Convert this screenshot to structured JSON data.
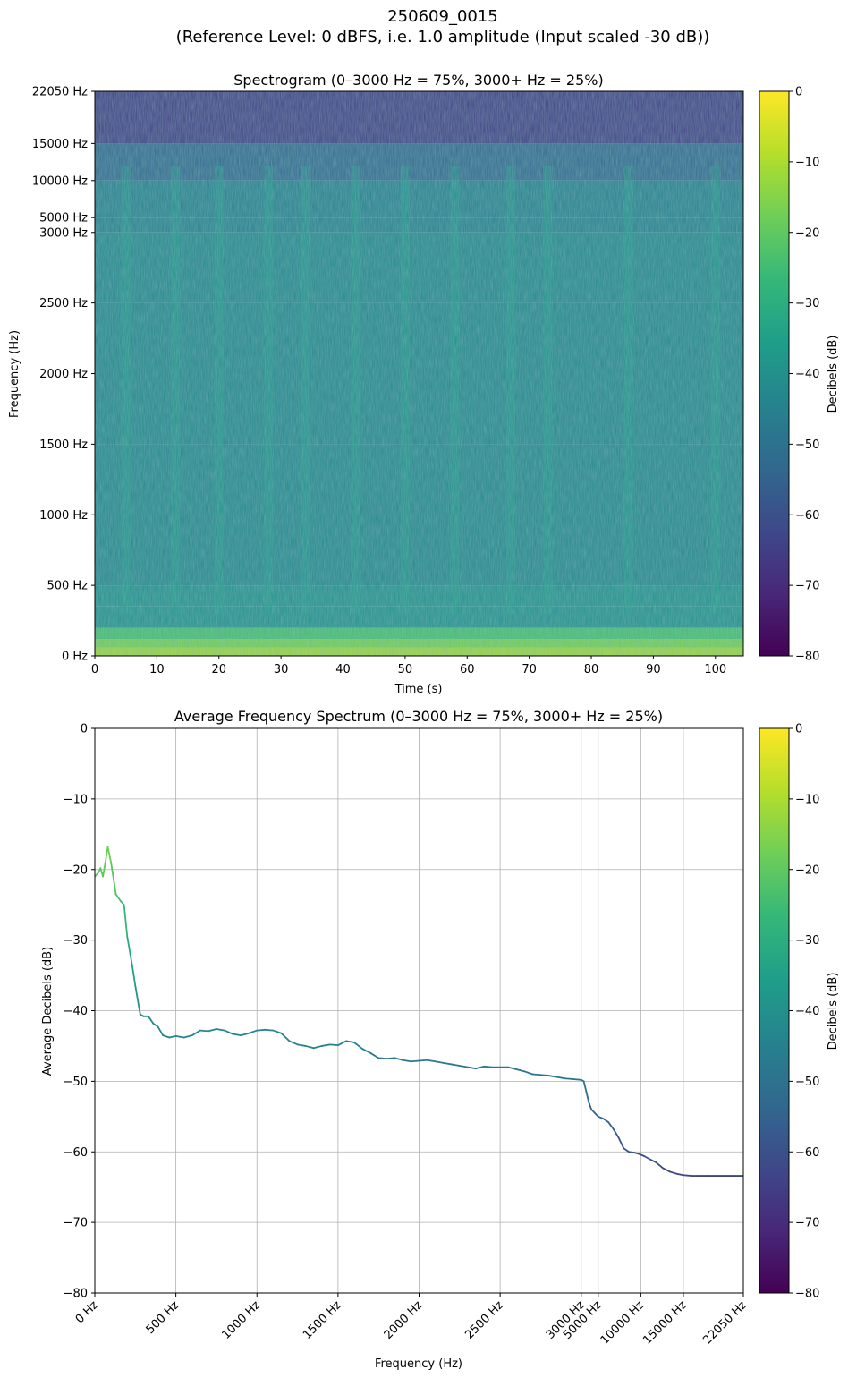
{
  "figure": {
    "title_line1": "250609_0015",
    "title_line2": "(Reference Level: 0 dBFS, i.e. 1.0 amplitude (Input scaled -30 dB))"
  },
  "colormap": {
    "name": "viridis",
    "stops": [
      "#440154",
      "#482878",
      "#3e4989",
      "#31688e",
      "#26828e",
      "#1f9e89",
      "#35b779",
      "#6ece58",
      "#b5de2b",
      "#fde725"
    ]
  },
  "chart_data": [
    {
      "type": "heatmap",
      "title": "Spectrogram (0–3000 Hz = 75%, 3000+ Hz = 25%)",
      "xlabel": "Time (s)",
      "ylabel": "Frequency (Hz)",
      "xlim": [
        0,
        104.5
      ],
      "x_ticks": [
        0,
        10,
        20,
        30,
        40,
        50,
        60,
        70,
        80,
        90,
        100
      ],
      "y_scale": "piecewise: 0–3000 Hz linear on lower 75%, 3000–22050 Hz linear on upper 25%",
      "y_ticks": [
        {
          "hz": 0,
          "label": "0 Hz"
        },
        {
          "hz": 500,
          "label": "500 Hz"
        },
        {
          "hz": 1000,
          "label": "1000 Hz"
        },
        {
          "hz": 1500,
          "label": "1500 Hz"
        },
        {
          "hz": 2000,
          "label": "2000 Hz"
        },
        {
          "hz": 2500,
          "label": "2500 Hz"
        },
        {
          "hz": 3000,
          "label": "3000 Hz"
        },
        {
          "hz": 5000,
          "label": "5000 Hz"
        },
        {
          "hz": 10000,
          "label": "10000 Hz"
        },
        {
          "hz": 15000,
          "label": "15000 Hz"
        },
        {
          "hz": 22050,
          "label": "22050 Hz"
        }
      ],
      "colorbar": {
        "label": "Decibels (dB)",
        "range": [
          -80,
          0
        ],
        "ticks": [
          0,
          -10,
          -20,
          -30,
          -40,
          -50,
          -60,
          -70,
          -80
        ]
      },
      "approx_levels_db": {
        "above_15000_hz": -65,
        "3000_to_10000_hz": -45,
        "500_to_3000_hz": -43,
        "below_200_hz": -18
      },
      "bright_columns_s": [
        5,
        13,
        20,
        28,
        34,
        42,
        50,
        58,
        67,
        73,
        86,
        100
      ]
    },
    {
      "type": "line",
      "title": "Average Frequency Spectrum (0–3000 Hz = 75%, 3000+ Hz = 25%)",
      "xlabel": "Frequency (Hz)",
      "ylabel": "Average Decibels (dB)",
      "ylim": [
        -80,
        0
      ],
      "y_ticks": [
        0,
        -10,
        -20,
        -30,
        -40,
        -50,
        -60,
        -70,
        -80
      ],
      "x_scale": "piecewise: 0–3000 Hz linear on left 75%, 3000–22050 Hz linear on right 25%",
      "x_ticks": [
        {
          "hz": 0,
          "label": "0 Hz"
        },
        {
          "hz": 500,
          "label": "500 Hz"
        },
        {
          "hz": 1000,
          "label": "1000 Hz"
        },
        {
          "hz": 1500,
          "label": "1500 Hz"
        },
        {
          "hz": 2000,
          "label": "2000 Hz"
        },
        {
          "hz": 2500,
          "label": "2500 Hz"
        },
        {
          "hz": 3000,
          "label": "3000 Hz"
        },
        {
          "hz": 5000,
          "label": "5000 Hz"
        },
        {
          "hz": 10000,
          "label": "10000 Hz"
        },
        {
          "hz": 15000,
          "label": "15000 Hz"
        },
        {
          "hz": 22050,
          "label": "22050 Hz"
        }
      ],
      "grid": true,
      "colorbar": {
        "label": "Decibels (dB)",
        "range": [
          -80,
          0
        ],
        "ticks": [
          0,
          -10,
          -20,
          -30,
          -40,
          -50,
          -60,
          -70,
          -80
        ]
      },
      "x": [
        0,
        20,
        35,
        50,
        65,
        80,
        100,
        130,
        160,
        180,
        200,
        230,
        250,
        280,
        300,
        330,
        360,
        390,
        420,
        460,
        500,
        550,
        600,
        650,
        700,
        750,
        800,
        850,
        900,
        950,
        1000,
        1050,
        1100,
        1150,
        1200,
        1250,
        1300,
        1350,
        1400,
        1450,
        1500,
        1550,
        1600,
        1650,
        1700,
        1750,
        1800,
        1850,
        1900,
        1950,
        2000,
        2050,
        2100,
        2150,
        2200,
        2250,
        2300,
        2350,
        2400,
        2450,
        2500,
        2550,
        2600,
        2650,
        2700,
        2750,
        2800,
        2850,
        2900,
        2950,
        3000,
        3300,
        3600,
        3900,
        4200,
        4600,
        5000,
        5600,
        6200,
        6800,
        7400,
        8000,
        8600,
        9200,
        9800,
        10400,
        11000,
        11800,
        12600,
        13400,
        14200,
        15000,
        16000,
        17000,
        18000,
        19000,
        20000,
        21000,
        22050
      ],
      "y": [
        -21,
        -20.5,
        -19.8,
        -21,
        -19,
        -16.8,
        -19,
        -23.5,
        -24.5,
        -25,
        -29.5,
        -33.5,
        -36.5,
        -40.5,
        -40.8,
        -40.8,
        -41.8,
        -42.3,
        -43.5,
        -43.8,
        -43.6,
        -43.8,
        -43.5,
        -42.8,
        -42.9,
        -42.6,
        -42.8,
        -43.3,
        -43.5,
        -43.2,
        -42.8,
        -42.7,
        -42.8,
        -43.2,
        -44.3,
        -44.8,
        -45.0,
        -45.3,
        -45.0,
        -44.8,
        -44.9,
        -44.3,
        -44.5,
        -45.4,
        -46.0,
        -46.7,
        -46.8,
        -46.7,
        -47.0,
        -47.2,
        -47.1,
        -47.0,
        -47.2,
        -47.4,
        -47.6,
        -47.8,
        -48.0,
        -48.2,
        -47.9,
        -48.0,
        -48.0,
        -48.0,
        -48.3,
        -48.6,
        -49.0,
        -49.1,
        -49.2,
        -49.4,
        -49.6,
        -49.7,
        -49.8,
        -50.0,
        -51.5,
        -53.0,
        -54.0,
        -54.5,
        -55.0,
        -55.3,
        -55.8,
        -56.8,
        -58.0,
        -59.5,
        -60.0,
        -60.1,
        -60.3,
        -60.6,
        -61.0,
        -61.5,
        -62.3,
        -62.8,
        -63.1,
        -63.3,
        -63.4,
        -63.4,
        -63.4,
        -63.4,
        -63.4,
        -63.4,
        -63.4
      ]
    }
  ]
}
